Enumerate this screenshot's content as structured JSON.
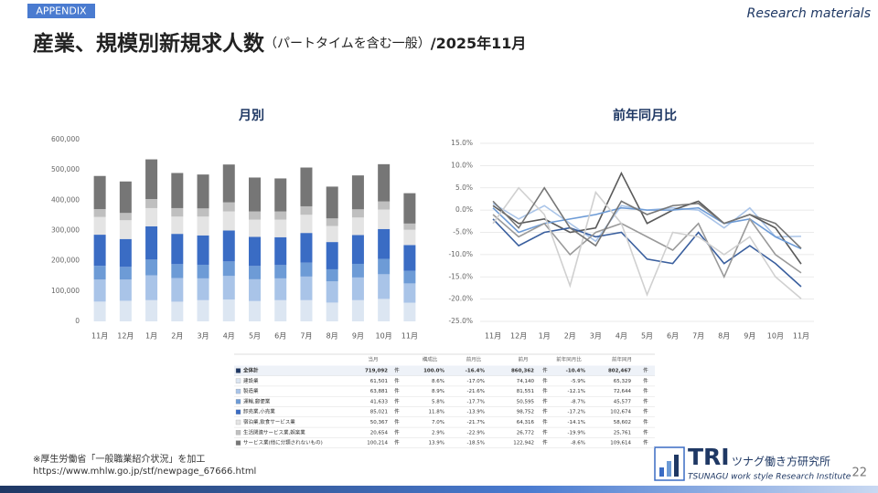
{
  "header": {
    "tag": "APPENDIX",
    "corner": "Research materials",
    "title": "産業、規模別新規求人数",
    "subtitle": "（パートタイムを含む一般）",
    "period": "/2025年11月"
  },
  "chart_data": [
    {
      "type": "bar",
      "stacked": true,
      "title": "月別",
      "categories": [
        "11月",
        "12月",
        "1月",
        "2月",
        "3月",
        "4月",
        "5月",
        "6月",
        "7月",
        "8月",
        "9月",
        "10月",
        "11月"
      ],
      "series": [
        {
          "name": "建設業",
          "color": "#dce6f2",
          "values": [
            65329,
            68000,
            70000,
            65000,
            70000,
            72000,
            67000,
            70000,
            70000,
            62000,
            70000,
            74140,
            61501
          ]
        },
        {
          "name": "製造業",
          "color": "#a9c4e8",
          "values": [
            72644,
            70000,
            82000,
            78000,
            72000,
            78000,
            72000,
            72000,
            78000,
            70000,
            75000,
            81551,
            63881
          ]
        },
        {
          "name": "運輸,郵便業",
          "color": "#6d9bd6",
          "values": [
            45577,
            42000,
            52000,
            46000,
            45000,
            48000,
            44000,
            44000,
            46000,
            40000,
            45000,
            50595,
            41633
          ]
        },
        {
          "name": "卸売業,小売業",
          "color": "#3a6cc4",
          "values": [
            102674,
            92000,
            110000,
            100000,
            97000,
            102000,
            96000,
            92000,
            98000,
            90000,
            95000,
            98752,
            85021
          ]
        },
        {
          "name": "宿泊業,飲食サービス業",
          "color": "#e4e4e4",
          "values": [
            58602,
            62000,
            60000,
            57000,
            62000,
            63000,
            57000,
            58000,
            60000,
            53000,
            58000,
            64316,
            50367
          ]
        },
        {
          "name": "生活関連サービス業,娯楽業",
          "color": "#bfbfbf",
          "values": [
            25761,
            24000,
            30000,
            28000,
            27000,
            30000,
            27000,
            27000,
            28000,
            25000,
            27000,
            26772,
            20654
          ]
        },
        {
          "name": "サービス業(他に分類されないもの)",
          "color": "#767676",
          "values": [
            109614,
            104000,
            131000,
            116000,
            112000,
            125000,
            112000,
            109000,
            128000,
            105000,
            112000,
            122942,
            100214
          ]
        }
      ],
      "ylim": [
        0,
        600000
      ],
      "yticks": [
        0,
        {
          "value": 100000,
          "label": "100,000"
        },
        {
          "value": 200000,
          "label": "200,000"
        },
        {
          "value": 300000,
          "label": "300,000"
        },
        {
          "value": 400000,
          "label": "400,000"
        },
        {
          "value": 500000,
          "label": "500,000"
        },
        {
          "value": 600000,
          "label": "600,000"
        }
      ]
    },
    {
      "type": "line",
      "title": "前年同月比",
      "grid": true,
      "categories": [
        "11月",
        "12月",
        "1月",
        "2月",
        "3月",
        "4月",
        "5月",
        "6月",
        "7月",
        "8月",
        "9月",
        "10月",
        "11月"
      ],
      "series": [
        {
          "color": "#a9c4e8",
          "values": [
            1.5,
            -2,
            1,
            -3,
            -7,
            1,
            0,
            0.5,
            0,
            -4,
            0.5,
            -6,
            -5.9
          ]
        },
        {
          "color": "#5a5a5a",
          "values": [
            1,
            -3,
            -2,
            -5,
            -4,
            8.3,
            -3,
            0,
            2,
            -3,
            -1,
            -4,
            -12.1
          ]
        },
        {
          "color": "#6d9bd6",
          "values": [
            0.5,
            -5,
            -3,
            -2,
            -1,
            0.5,
            0,
            0,
            0.5,
            -3,
            -2,
            -6,
            -8.7
          ]
        },
        {
          "color": "#3a5f9e",
          "values": [
            -2,
            -8,
            -5,
            -4,
            -6,
            -5,
            -11,
            -12,
            -5,
            -12,
            -8,
            -12,
            -17.2
          ]
        },
        {
          "color": "#9a9a9a",
          "values": [
            -1,
            -6,
            -3,
            -10,
            -5,
            -3,
            -6,
            -9,
            -3,
            -15,
            -2,
            -10,
            -14.1
          ]
        },
        {
          "color": "#d0d0d0",
          "values": [
            -3,
            5,
            -1,
            -17,
            4,
            -3,
            -19,
            -5,
            -6,
            -10,
            -6,
            -15,
            -19.9
          ]
        },
        {
          "color": "#767676",
          "values": [
            2,
            -4,
            5,
            -4,
            -8,
            2,
            -1,
            1,
            1.5,
            -3,
            -1,
            -3,
            -8.6
          ]
        }
      ],
      "ylim": [
        -25,
        15
      ],
      "yticks": [
        {
          "value": -25,
          "label": "-25.0%"
        },
        {
          "value": -20,
          "label": "-20.0%"
        },
        {
          "value": -15,
          "label": "-15.0%"
        },
        {
          "value": -10,
          "label": "-10.0%"
        },
        {
          "value": -5,
          "label": "-5.0%"
        },
        {
          "value": 0,
          "label": "0.0%"
        },
        {
          "value": 5,
          "label": "5.0%"
        },
        {
          "value": 10,
          "label": "10.0%"
        },
        {
          "value": 15,
          "label": "15.0%"
        }
      ]
    }
  ],
  "table": {
    "headers": [
      "当月",
      "構成比",
      "前月比",
      "前月",
      "前年同月比",
      "前年同月"
    ],
    "unit": "件",
    "total_label": "全体計",
    "total_color": "#1f3864",
    "rows": [
      [
        "719,092",
        "100.0%",
        "-16.4%",
        "860,362",
        "-10.4%",
        "802,467"
      ],
      [
        "61,501",
        "8.6%",
        "-17.0%",
        "74,140",
        "-5.9%",
        "65,329"
      ],
      [
        "63,881",
        "8.9%",
        "-21.6%",
        "81,551",
        "-12.1%",
        "72,644"
      ],
      [
        "41,633",
        "5.8%",
        "-17.7%",
        "50,595",
        "-8.7%",
        "45,577"
      ],
      [
        "85,021",
        "11.8%",
        "-13.9%",
        "98,752",
        "-17.2%",
        "102,674"
      ],
      [
        "50,367",
        "7.0%",
        "-21.7%",
        "64,316",
        "-14.1%",
        "58,602"
      ],
      [
        "20,654",
        "2.9%",
        "-22.9%",
        "26,772",
        "-19.9%",
        "25,761"
      ],
      [
        "100,214",
        "13.9%",
        "-18.5%",
        "122,942",
        "-8.6%",
        "109,614"
      ]
    ]
  },
  "footer": {
    "source": "※厚生労働省「一般職業紹介状況」を加工",
    "url": "https://www.mhlw.go.jp/stf/newpage_67666.html",
    "logo": "TRI",
    "logo_jp": "ツナグ働き方研究所",
    "logo_en": "TSUNAGU work style Research Institute",
    "page": "22"
  }
}
